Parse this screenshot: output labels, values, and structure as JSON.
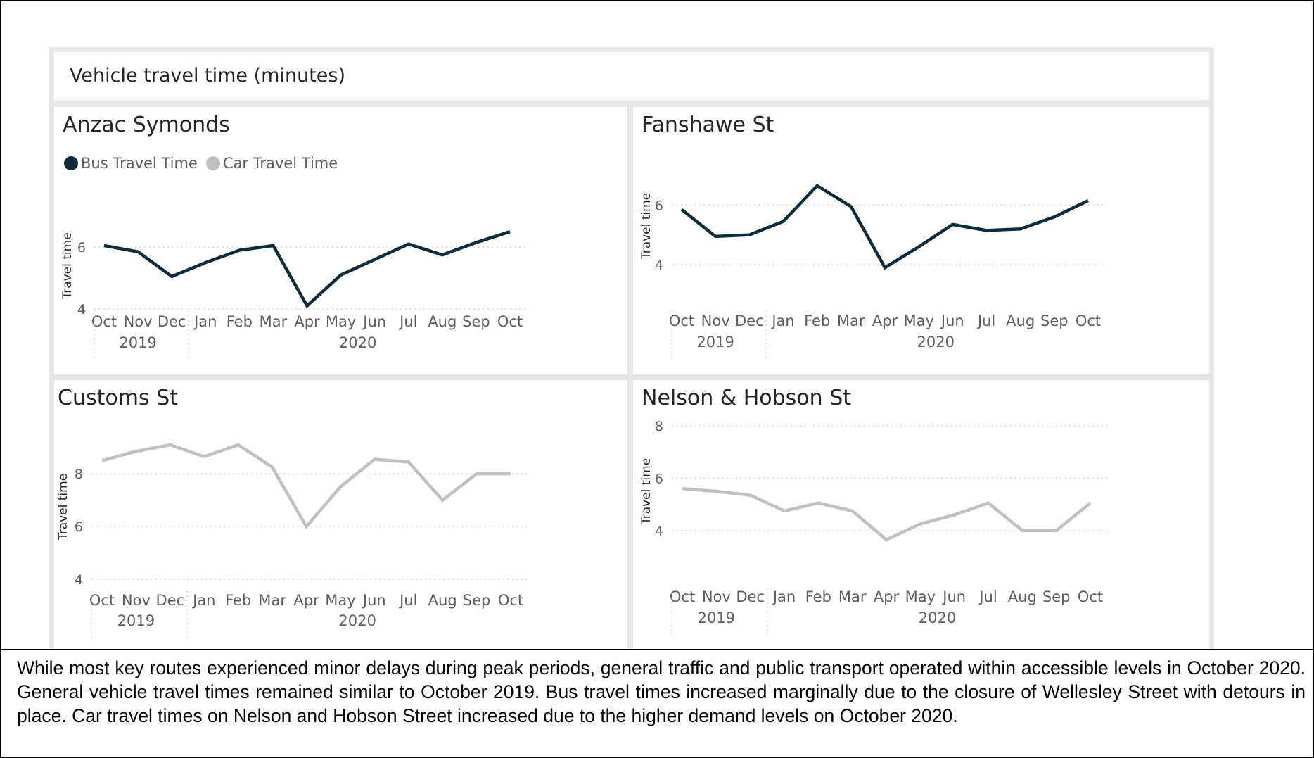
{
  "header": {
    "title": "Vehicle travel time (minutes)"
  },
  "legend": {
    "bus_label": "Bus Travel Time",
    "car_label": "Car Travel Time",
    "bus_color": "#0e2a3b",
    "car_color": "#c0c0c0"
  },
  "caption": "While most key routes experienced minor delays during peak periods, general traffic and public transport operated within accessible levels in October 2020. General vehicle travel times remained similar to October 2019. Bus travel times increased marginally due to the closure of Wellesley Street with detours in place. Car travel times on Nelson and Hobson Street increased due to the higher demand levels on October 2020.",
  "chart_data": [
    {
      "type": "line",
      "title": "Anzac Symonds",
      "ylabel": "Travel time",
      "categories": [
        "Oct",
        "Nov",
        "Dec",
        "Jan",
        "Feb",
        "Mar",
        "Apr",
        "May",
        "Jun",
        "Jul",
        "Aug",
        "Sep",
        "Oct"
      ],
      "year_groups": [
        {
          "label": "2019",
          "count": 3
        },
        {
          "label": "2020",
          "count": 10
        }
      ],
      "yticks": [
        4,
        6
      ],
      "ylim": [
        4,
        6.8
      ],
      "grid": true,
      "legend": "top-left",
      "series": [
        {
          "name": "Bus Travel Time",
          "values": [
            6.05,
            5.85,
            5.05,
            5.5,
            5.9,
            6.05,
            4.1,
            5.1,
            5.6,
            6.1,
            5.75,
            6.15,
            6.5
          ]
        }
      ]
    },
    {
      "type": "line",
      "title": "Fanshawe St",
      "ylabel": "Travel time",
      "categories": [
        "Oct",
        "Nov",
        "Dec",
        "Jan",
        "Feb",
        "Mar",
        "Apr",
        "May",
        "Jun",
        "Jul",
        "Aug",
        "Sep",
        "Oct"
      ],
      "year_groups": [
        {
          "label": "2019",
          "count": 3
        },
        {
          "label": "2020",
          "count": 10
        }
      ],
      "yticks": [
        4,
        6
      ],
      "ylim": [
        3.6,
        7
      ],
      "grid": true,
      "series": [
        {
          "name": "Bus Travel Time",
          "values": [
            5.85,
            4.95,
            5.0,
            5.45,
            6.65,
            5.95,
            3.9,
            4.6,
            5.35,
            5.15,
            5.2,
            5.6,
            6.15
          ]
        }
      ]
    },
    {
      "type": "line",
      "title": "Customs St",
      "ylabel": "Travel time",
      "categories": [
        "Oct",
        "Nov",
        "Dec",
        "Jan",
        "Feb",
        "Mar",
        "Apr",
        "May",
        "Jun",
        "Jul",
        "Aug",
        "Sep",
        "Oct"
      ],
      "year_groups": [
        {
          "label": "2019",
          "count": 3
        },
        {
          "label": "2020",
          "count": 10
        }
      ],
      "yticks": [
        4,
        6,
        8
      ],
      "ylim": [
        4,
        9.5
      ],
      "grid": true,
      "series": [
        {
          "name": "Car Travel Time",
          "values": [
            8.5,
            8.85,
            9.1,
            8.65,
            9.1,
            8.25,
            6.0,
            7.5,
            8.55,
            8.45,
            7.0,
            8.0,
            8.0
          ]
        }
      ]
    },
    {
      "type": "line",
      "title": "Nelson & Hobson St",
      "ylabel": "Travel time",
      "categories": [
        "Oct",
        "Nov",
        "Dec",
        "Jan",
        "Feb",
        "Mar",
        "Apr",
        "May",
        "Jun",
        "Jul",
        "Aug",
        "Sep",
        "Oct"
      ],
      "year_groups": [
        {
          "label": "2019",
          "count": 3
        },
        {
          "label": "2020",
          "count": 10
        }
      ],
      "yticks": [
        4,
        6,
        8
      ],
      "ylim": [
        3,
        8
      ],
      "grid": true,
      "series": [
        {
          "name": "Car Travel Time",
          "values": [
            5.6,
            5.5,
            5.35,
            4.75,
            5.05,
            4.75,
            3.65,
            4.25,
            4.6,
            5.05,
            4.0,
            4.0,
            5.05
          ]
        }
      ]
    }
  ]
}
